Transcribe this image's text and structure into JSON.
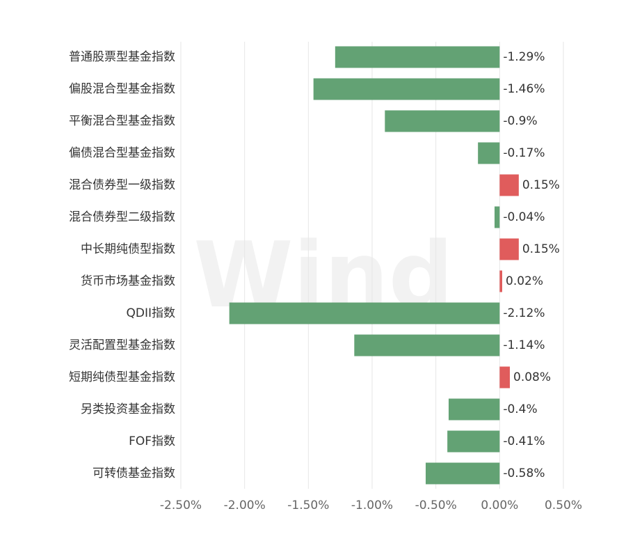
{
  "chart_data": {
    "type": "bar",
    "orientation": "horizontal",
    "categories": [
      "普通股票型基金指数",
      "偏股混合型基金指数",
      "平衡混合型基金指数",
      "偏债混合型基金指数",
      "混合债券型一级指数",
      "混合债券型二级指数",
      "中长期纯债型指数",
      "货币市场基金指数",
      "QDII指数",
      "灵活配置型基金指数",
      "短期纯债型基金指数",
      "另类投资基金指数",
      "FOF指数",
      "可转债基金指数"
    ],
    "values": [
      -1.29,
      -1.46,
      -0.9,
      -0.17,
      0.15,
      -0.04,
      0.15,
      0.02,
      -2.12,
      -1.14,
      0.08,
      -0.4,
      -0.41,
      -0.58
    ],
    "value_labels": [
      "-1.29%",
      "-1.46%",
      "-0.9%",
      "-0.17%",
      "0.15%",
      "-0.04%",
      "0.15%",
      "0.02%",
      "-2.12%",
      "-1.14%",
      "0.08%",
      "-0.4%",
      "-0.41%",
      "-0.58%"
    ],
    "xlim": [
      -2.5,
      0.5
    ],
    "xticks": [
      -2.5,
      -2.0,
      -1.5,
      -1.0,
      -0.5,
      0.0,
      0.5
    ],
    "xtick_labels": [
      "-2.50%",
      "-2.00%",
      "-1.50%",
      "-1.00%",
      "-0.50%",
      "0.00%",
      "0.50%"
    ],
    "grid": "vertical",
    "colors": {
      "negative": "#63a274",
      "positive": "#e05c5c"
    }
  },
  "watermark": {
    "text": "Wind"
  }
}
